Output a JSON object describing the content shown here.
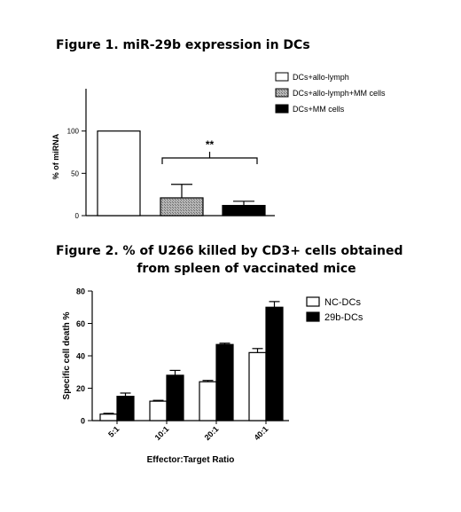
{
  "figures": [
    {
      "title": "Figure 1. miR-29b expression in DCs"
    },
    {
      "title_line1": "Figure 2. % of U266 killed by CD3+ cells obtained",
      "title_line2": "from spleen of vaccinated mice"
    }
  ],
  "chart_data": [
    {
      "type": "bar",
      "title": "Figure 1. miR-29b expression in DCs",
      "ylabel": "% of miRNA",
      "xlabel": "",
      "ylim": [
        0,
        150
      ],
      "yticks": [
        "0",
        "50",
        "100"
      ],
      "categories": [
        "DCs+allo-lymph",
        "DCs+allo-lymph+MM cells",
        "DCs+MM cells"
      ],
      "values": [
        100,
        21,
        12
      ],
      "errors": [
        0,
        16,
        5
      ],
      "fills": [
        "#ffffff",
        "#9e9e9e",
        "#000000"
      ],
      "legend": [
        "DCs+allo-lymph",
        "DCs+allo-lymph+MM cells",
        "DCs+MM cells"
      ],
      "legend_position": "top-right",
      "annotation": "**"
    },
    {
      "type": "bar",
      "title": "Figure 2. % of U266 killed by CD3+ cells obtained from spleen of vaccinated mice",
      "xlabel": "Effector:Target Ratio",
      "ylabel": "Specific cell death %",
      "ylim": [
        0,
        80
      ],
      "yticks": [
        "0",
        "20",
        "40",
        "60",
        "80"
      ],
      "categories": [
        "5:1",
        "10:1",
        "20:1",
        "40:1"
      ],
      "series": [
        {
          "name": "NC-DCs",
          "values": [
            4,
            12,
            24,
            42
          ],
          "errors": [
            0.5,
            0.5,
            0.8,
            2.5
          ],
          "color": "#ffffff"
        },
        {
          "name": "29b-DCs",
          "values": [
            15,
            28,
            47,
            70
          ],
          "errors": [
            2,
            3,
            0.8,
            3.5
          ],
          "color": "#000000"
        }
      ],
      "legend_position": "top-right"
    }
  ]
}
